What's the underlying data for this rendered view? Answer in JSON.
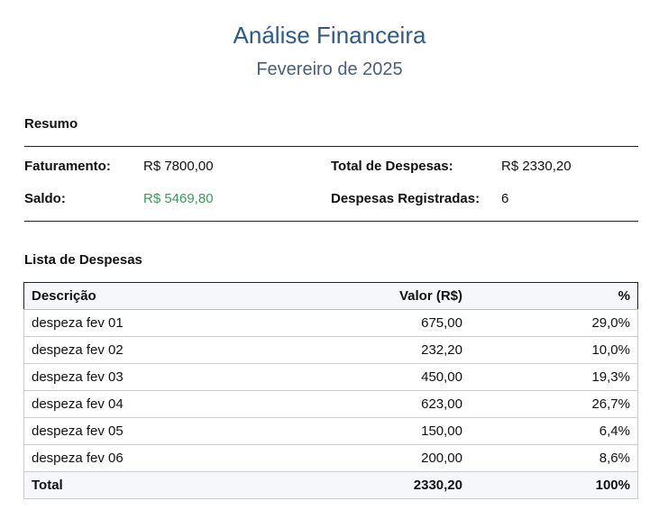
{
  "title": "Análise Financeira",
  "subtitle": "Fevereiro de 2025",
  "summary": {
    "heading": "Resumo",
    "revenue_label": "Faturamento:",
    "revenue": "R$ 7800,00",
    "expenses_label": "Total de Despesas:",
    "expenses": "R$ 2330,20",
    "balance_label": "Saldo:",
    "balance": "R$ 5469,80",
    "count_label": "Despesas Registradas:",
    "count": "6",
    "balance_color": "#3a9a5b"
  },
  "list": {
    "heading": "Lista de Despesas",
    "columns": [
      "Descrição",
      "Valor (R$)",
      "%"
    ],
    "rows": [
      [
        "despeza fev 01",
        "675,00",
        "29,0%"
      ],
      [
        "despeza fev 02",
        "232,20",
        "10,0%"
      ],
      [
        "despeza fev 03",
        "450,00",
        "19,3%"
      ],
      [
        "despeza fev 04",
        "623,00",
        "26,7%"
      ],
      [
        "despeza fev 05",
        "150,00",
        "6,4%"
      ],
      [
        "despeza fev 06",
        "200,00",
        "8,6%"
      ]
    ],
    "total": [
      "Total",
      "2330,20",
      "100%"
    ]
  }
}
